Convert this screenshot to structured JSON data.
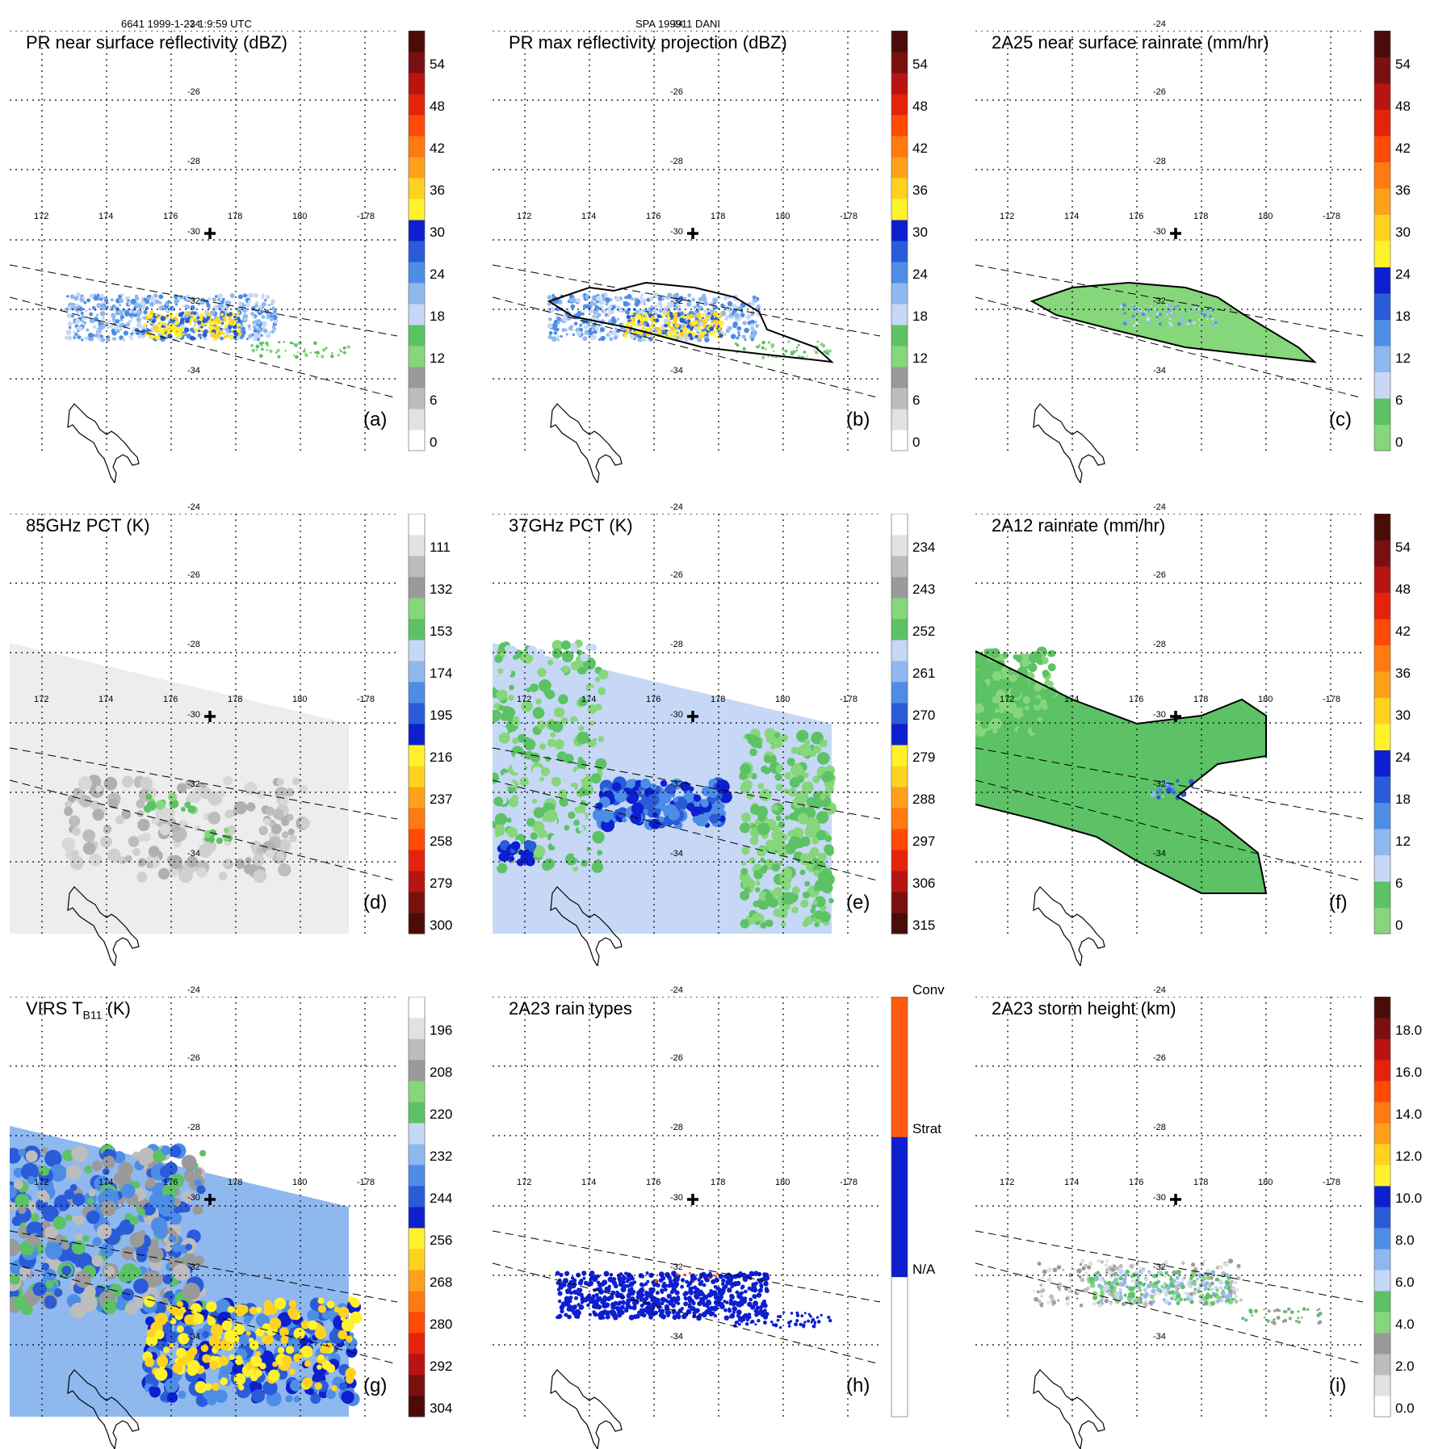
{
  "header": {
    "left": "6641 1999-1-23 1:9:59 UTC",
    "center": "SPA 199911 DANI"
  },
  "lon_labels": [
    "172",
    "174",
    "176",
    "178",
    "180",
    "-178"
  ],
  "lat_labels": [
    "-24",
    "-26",
    "-28",
    "-30",
    "-32",
    "-34"
  ],
  "palettes": {
    "dbz": [
      "#ffffff",
      "#e2e2e2",
      "#bdbdbd",
      "#9a9a9a",
      "#86d67b",
      "#5cc265",
      "#c6d8f5",
      "#8fb8ee",
      "#4d8de6",
      "#2a5bd8",
      "#0d1fcf",
      "#fff22a",
      "#ffd21f",
      "#ffa01a",
      "#ff7a10",
      "#ff4a08",
      "#e4230a",
      "#b81412",
      "#7a1010",
      "#4a0c08"
    ],
    "rain": [
      "#86d67b",
      "#5cc265",
      "#c6d8f5",
      "#8fb8ee",
      "#4d8de6",
      "#2a5bd8",
      "#0d1fcf",
      "#fff22a",
      "#ffd21f",
      "#ffa01a",
      "#ff7a10",
      "#ff4a08",
      "#e4230a",
      "#b81412",
      "#7a1010",
      "#4a0c08"
    ],
    "pct": [
      "#4a0c08",
      "#7a1010",
      "#b81412",
      "#e4230a",
      "#ff4a08",
      "#ff7a10",
      "#ffa01a",
      "#ffd21f",
      "#fff22a",
      "#0d1fcf",
      "#2a5bd8",
      "#4d8de6",
      "#8fb8ee",
      "#c6d8f5",
      "#5cc265",
      "#86d67b",
      "#9a9a9a",
      "#bdbdbd",
      "#e2e2e2",
      "#ffffff"
    ],
    "types": [
      "#ffffff",
      "#ffffff",
      "#ffffff",
      "#ffffff",
      "#ffffff",
      "#0d1fcf",
      "#0d1fcf",
      "#0d1fcf",
      "#0d1fcf",
      "#0d1fcf",
      "#ff5a10",
      "#ff5a10",
      "#ff5a10",
      "#ff5a10",
      "#ff5a10"
    ]
  },
  "panels": [
    {
      "id": "a",
      "title": "PR near surface reflectivity (dBZ)",
      "label": "(a)",
      "palette": "dbz",
      "colorbar_ticks": [
        "54",
        "48",
        "42",
        "36",
        "30",
        "24",
        "18",
        "12",
        "6",
        "0"
      ]
    },
    {
      "id": "b",
      "title": "PR max reflectivity projection (dBZ)",
      "label": "(b)",
      "palette": "dbz",
      "colorbar_ticks": [
        "54",
        "48",
        "42",
        "36",
        "30",
        "24",
        "18",
        "12",
        "6",
        "0"
      ]
    },
    {
      "id": "c",
      "title": "2A25 near surface rainrate (mm/hr)",
      "label": "(c)",
      "palette": "rain",
      "colorbar_ticks": [
        "54",
        "48",
        "42",
        "36",
        "30",
        "24",
        "18",
        "12",
        "6",
        "0"
      ]
    },
    {
      "id": "d",
      "title": "85GHz PCT (K)",
      "label": "(d)",
      "palette": "pct",
      "colorbar_ticks": [
        "111",
        "132",
        "153",
        "174",
        "195",
        "216",
        "237",
        "258",
        "279",
        "300"
      ]
    },
    {
      "id": "e",
      "title": "37GHz PCT (K)",
      "label": "(e)",
      "palette": "pct",
      "colorbar_ticks": [
        "234",
        "243",
        "252",
        "261",
        "270",
        "279",
        "288",
        "297",
        "306",
        "315"
      ]
    },
    {
      "id": "f",
      "title": "2A12 rainrate (mm/hr)",
      "label": "(f)",
      "palette": "rain",
      "colorbar_ticks": [
        "54",
        "48",
        "42",
        "36",
        "30",
        "24",
        "18",
        "12",
        "6",
        "0"
      ]
    },
    {
      "id": "g",
      "title": "VIRS T",
      "title_sub": "B11",
      "title_suffix": " (K)",
      "label": "(g)",
      "palette": "pct",
      "colorbar_ticks": [
        "196",
        "208",
        "220",
        "232",
        "244",
        "256",
        "268",
        "280",
        "292",
        "304"
      ]
    },
    {
      "id": "h",
      "title": "2A23 rain types",
      "label": "(h)",
      "palette": "types",
      "colorbar_ticks": [
        "Conv",
        "Strat",
        "N/A"
      ]
    },
    {
      "id": "i",
      "title": "2A23 storm height (km)",
      "label": "(i)",
      "palette": "dbz",
      "colorbar_ticks": [
        "18.0",
        "16.0",
        "14.0",
        "12.0",
        "10.0",
        "8.0",
        "6.0",
        "4.0",
        "2.0",
        "0.0"
      ]
    }
  ]
}
